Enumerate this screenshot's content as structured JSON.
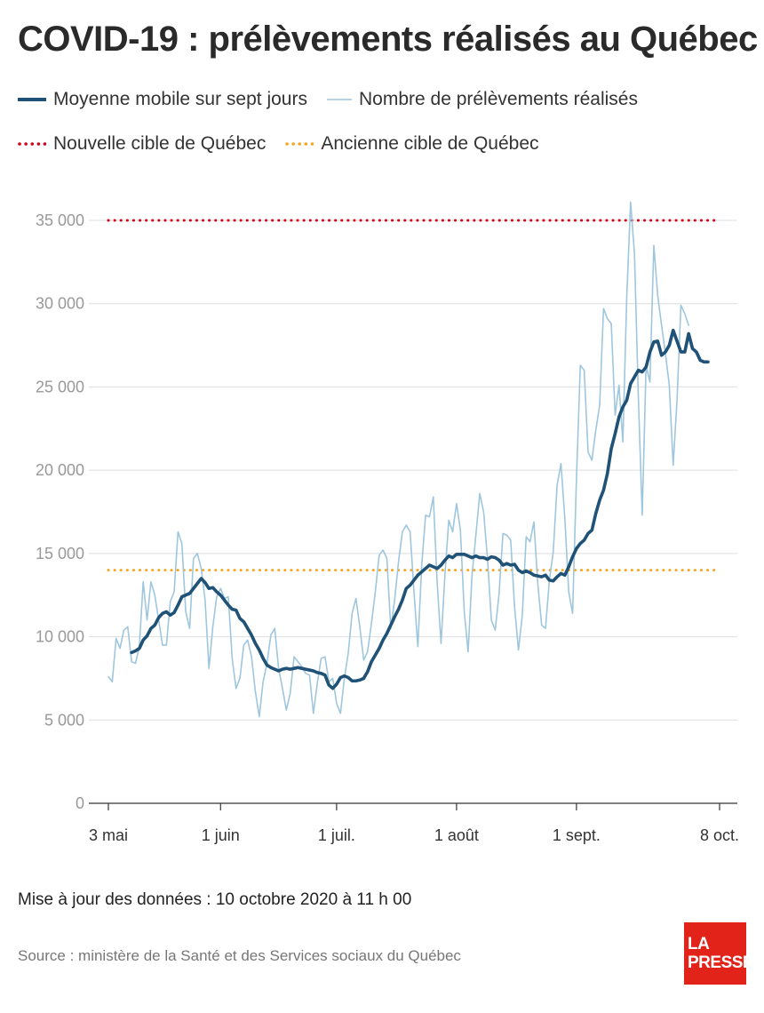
{
  "title": "COVID-19 : prélèvements réalisés au Québec",
  "legend": {
    "avg": "Moyenne mobile sur sept jours",
    "daily": "Nombre de prélèvements réalisés",
    "new_target": "Nouvelle cible de Québec",
    "old_target": "Ancienne cible de Québec"
  },
  "footer": {
    "update": "Mise à jour des données : 10 octobre 2020 à 11 h 00",
    "source": "Source : ministère de la Santé et des Services sociaux du Québec"
  },
  "logo": {
    "line1": "LA",
    "line2": "PRESSE"
  },
  "colors": {
    "avg": "#1f5276",
    "daily": "#9ec6de",
    "new_target": "#d0021b",
    "old_target": "#f5a623",
    "grid": "#dddddd",
    "logo": "#e2231a"
  },
  "chart_data": {
    "type": "line",
    "title": "COVID-19 : prélèvements réalisés au Québec",
    "xlabel": "",
    "ylabel": "",
    "ylim": [
      0,
      35000
    ],
    "yticks": [
      0,
      5000,
      10000,
      15000,
      20000,
      25000,
      30000,
      35000
    ],
    "ytick_labels": [
      "0",
      "5 000",
      "10 000",
      "15 000",
      "20 000",
      "25 000",
      "30 000",
      "35 000"
    ],
    "x_start": "2020-05-03",
    "x_end": "2020-10-08",
    "xticks": [
      {
        "date": "2020-05-03",
        "label": "3 mai"
      },
      {
        "date": "2020-06-01",
        "label": "1 juin"
      },
      {
        "date": "2020-07-01",
        "label": "1 juil."
      },
      {
        "date": "2020-08-01",
        "label": "1 août"
      },
      {
        "date": "2020-09-01",
        "label": "1 sept."
      },
      {
        "date": "2020-10-08",
        "label": "8 oct."
      }
    ],
    "grid": true,
    "legend_position": "top",
    "reference_lines": [
      {
        "name": "Nouvelle cible de Québec",
        "value": 35000
      },
      {
        "name": "Ancienne cible de Québec",
        "value": 14000
      }
    ],
    "series": [
      {
        "name": "Nombre de prélèvements réalisés",
        "start": "2020-05-03",
        "values": [
          7600,
          7300,
          9900,
          9300,
          10400,
          10600,
          8500,
          8400,
          9400,
          13300,
          11000,
          13300,
          12500,
          11000,
          9500,
          9500,
          12100,
          12700,
          16300,
          15600,
          11500,
          10500,
          14700,
          15000,
          14100,
          12200,
          8100,
          10600,
          12400,
          12900,
          12300,
          12400,
          8700,
          6900,
          7500,
          9500,
          9800,
          8800,
          6700,
          5200,
          7300,
          8400,
          10100,
          10500,
          8100,
          6900,
          5600,
          6600,
          8800,
          8500,
          8200,
          7800,
          7700,
          5400,
          7200,
          8700,
          8800,
          7300,
          7500,
          6000,
          5400,
          7500,
          9000,
          11400,
          12300,
          10600,
          8600,
          9100,
          10800,
          12700,
          14900,
          15200,
          14700,
          10500,
          12200,
          14500,
          16300,
          16700,
          16300,
          12700,
          9400,
          14300,
          17300,
          17200,
          18400,
          13200,
          9600,
          13700,
          17000,
          16300,
          18000,
          16400,
          11500,
          9100,
          13700,
          16100,
          18600,
          17500,
          14700,
          11000,
          10400,
          12600,
          16200,
          16100,
          15800,
          11800,
          9200,
          11300,
          16000,
          15700,
          16900,
          13200,
          10700,
          10500,
          13400,
          15100,
          19100,
          20400,
          17100,
          12700,
          11400,
          19500,
          26300,
          26000,
          21100,
          20600,
          22400,
          23900,
          29700,
          29100,
          28800,
          23300,
          25100,
          21700,
          30400,
          36100,
          33000,
          24400,
          17300,
          26300,
          25300,
          33500,
          30500,
          28700,
          27000,
          25100,
          20300,
          24200,
          29900,
          29400,
          28700
        ]
      },
      {
        "name": "Moyenne mobile sur sept jours",
        "start": "2020-05-09",
        "values": [
          9050,
          9150,
          9300,
          9800,
          10050,
          10500,
          10700,
          11150,
          11400,
          11500,
          11300,
          11450,
          11900,
          12400,
          12500,
          12600,
          12900,
          13200,
          13500,
          13250,
          12900,
          12950,
          12700,
          12500,
          12200,
          11900,
          11650,
          11600,
          11100,
          10900,
          10500,
          10100,
          9600,
          9200,
          8700,
          8300,
          8150,
          8050,
          7950,
          8050,
          8100,
          8050,
          8100,
          8150,
          8100,
          8050,
          8000,
          7950,
          7850,
          7800,
          7700,
          7100,
          6900,
          7150,
          7550,
          7650,
          7550,
          7350,
          7350,
          7400,
          7500,
          7900,
          8500,
          8900,
          9300,
          9800,
          10200,
          10700,
          11200,
          11650,
          12200,
          12900,
          13100,
          13400,
          13700,
          13900,
          14100,
          14300,
          14200,
          14100,
          14300,
          14600,
          14850,
          14750,
          14950,
          14950,
          14950,
          14850,
          14750,
          14850,
          14750,
          14750,
          14650,
          14800,
          14750,
          14600,
          14300,
          14400,
          14300,
          14350,
          14000,
          13850,
          13950,
          13850,
          13700,
          13650,
          13600,
          13700,
          13400,
          13350,
          13600,
          13800,
          13700,
          14200,
          14800,
          15300,
          15600,
          15800,
          16200,
          16400,
          17400,
          18200,
          18800,
          19800,
          21300,
          22200,
          23200,
          23800,
          24200,
          25200,
          25600,
          26000,
          25900,
          26200,
          27100,
          27700,
          27750,
          26900,
          27100,
          27500,
          28400,
          27750,
          27100,
          27100,
          28200,
          27300,
          27100,
          26600,
          26500,
          26500
        ]
      }
    ]
  }
}
